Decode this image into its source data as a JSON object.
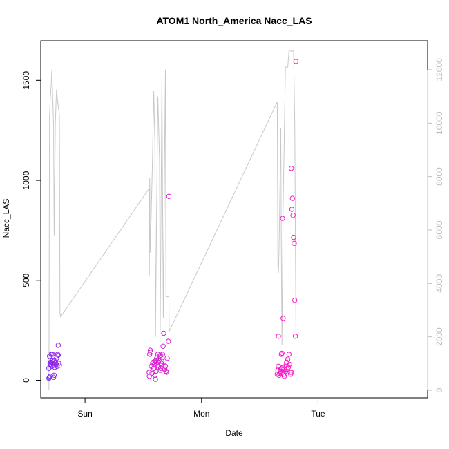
{
  "chart_data": {
    "type": "scatter",
    "title": "ATOM1 North_America Nacc_LAS",
    "xlabel": "Date",
    "ylabel": "Nacc_LAS",
    "x_ticks": [
      "Sun",
      "Mon",
      "Tue"
    ],
    "y_left": {
      "ylim": [
        -50,
        1660
      ],
      "ticks": [
        0,
        500,
        1000,
        1500
      ]
    },
    "y_right": {
      "ylim": [
        0,
        12800
      ],
      "ticks": [
        0,
        2000,
        4000,
        6000,
        8000,
        10000,
        12000
      ],
      "color": "#bebebe"
    },
    "x_range_days": [
      -0.38,
      2.94
    ],
    "colors": {
      "line": "#c8c8c8",
      "points_start": "#6a2cf5",
      "points_end": "#ff16c8"
    },
    "line_series": [
      [
        -0.31,
        0
      ],
      [
        -0.305,
        10300
      ],
      [
        -0.3,
        10800
      ],
      [
        -0.29,
        11450
      ],
      [
        -0.285,
        12000
      ],
      [
        -0.27,
        9900
      ],
      [
        -0.265,
        5800
      ],
      [
        -0.255,
        10000
      ],
      [
        -0.245,
        11250
      ],
      [
        -0.235,
        10800
      ],
      [
        -0.225,
        10500
      ],
      [
        -0.22,
        10300
      ],
      [
        -0.215,
        2900
      ],
      [
        -0.21,
        2750
      ],
      [
        0.55,
        7550
      ],
      [
        0.552,
        4300
      ],
      [
        0.555,
        7950
      ],
      [
        0.56,
        5150
      ],
      [
        0.58,
        8800
      ],
      [
        0.59,
        11200
      ],
      [
        0.6,
        9200
      ],
      [
        0.605,
        2000
      ],
      [
        0.615,
        6800
      ],
      [
        0.625,
        11000
      ],
      [
        0.64,
        8600
      ],
      [
        0.645,
        2200
      ],
      [
        0.66,
        11650
      ],
      [
        0.672,
        2700
      ],
      [
        0.685,
        9700
      ],
      [
        0.69,
        12000
      ],
      [
        0.695,
        3500
      ],
      [
        0.7,
        3500
      ],
      [
        0.72,
        3500
      ],
      [
        0.722,
        2200
      ],
      [
        1.65,
        10800
      ],
      [
        1.655,
        4600
      ],
      [
        1.66,
        4400
      ],
      [
        1.665,
        5200
      ],
      [
        1.68,
        9800
      ],
      [
        1.685,
        5100
      ],
      [
        1.69,
        1700
      ],
      [
        1.7,
        6800
      ],
      [
        1.72,
        12100
      ],
      [
        1.74,
        12100
      ],
      [
        1.75,
        12700
      ],
      [
        1.79,
        12700
      ],
      [
        1.8,
        10000
      ],
      [
        1.81,
        2200
      ]
    ],
    "points": [
      [
        -0.31,
        10
      ],
      [
        -0.305,
        15
      ],
      [
        -0.3,
        20
      ],
      [
        -0.31,
        60
      ],
      [
        -0.3,
        80
      ],
      [
        -0.295,
        90
      ],
      [
        -0.305,
        120
      ],
      [
        -0.29,
        130
      ],
      [
        -0.285,
        70
      ],
      [
        -0.28,
        100
      ],
      [
        -0.275,
        85
      ],
      [
        -0.27,
        75
      ],
      [
        -0.265,
        95
      ],
      [
        -0.26,
        65
      ],
      [
        -0.255,
        90
      ],
      [
        -0.25,
        80
      ],
      [
        -0.245,
        110
      ],
      [
        -0.24,
        75
      ],
      [
        -0.235,
        130
      ],
      [
        -0.23,
        125
      ],
      [
        -0.225,
        85
      ],
      [
        -0.22,
        75
      ],
      [
        -0.23,
        175
      ],
      [
        -0.27,
        15
      ],
      [
        -0.265,
        25
      ],
      [
        -0.28,
        130
      ],
      [
        -0.26,
        100
      ],
      [
        -0.24,
        70
      ],
      [
        -0.29,
        90
      ],
      [
        -0.295,
        75
      ],
      [
        0.55,
        40
      ],
      [
        0.552,
        20
      ],
      [
        0.555,
        130
      ],
      [
        0.56,
        150
      ],
      [
        0.565,
        140
      ],
      [
        0.57,
        70
      ],
      [
        0.575,
        35
      ],
      [
        0.58,
        85
      ],
      [
        0.585,
        90
      ],
      [
        0.59,
        60
      ],
      [
        0.595,
        80
      ],
      [
        0.6,
        25
      ],
      [
        0.605,
        5
      ],
      [
        0.61,
        100
      ],
      [
        0.615,
        110
      ],
      [
        0.62,
        75
      ],
      [
        0.625,
        130
      ],
      [
        0.63,
        90
      ],
      [
        0.635,
        100
      ],
      [
        0.64,
        120
      ],
      [
        0.645,
        50
      ],
      [
        0.65,
        60
      ],
      [
        0.655,
        85
      ],
      [
        0.66,
        95
      ],
      [
        0.665,
        130
      ],
      [
        0.67,
        170
      ],
      [
        0.675,
        235
      ],
      [
        0.68,
        75
      ],
      [
        0.685,
        55
      ],
      [
        0.69,
        70
      ],
      [
        0.695,
        45
      ],
      [
        0.7,
        40
      ],
      [
        0.705,
        110
      ],
      [
        0.72,
        920
      ],
      [
        0.715,
        195
      ],
      [
        0.6,
        95
      ],
      [
        0.61,
        45
      ],
      [
        0.63,
        65
      ],
      [
        0.65,
        125
      ],
      [
        1.65,
        30
      ],
      [
        1.655,
        50
      ],
      [
        1.66,
        70
      ],
      [
        1.665,
        25
      ],
      [
        1.67,
        35
      ],
      [
        1.675,
        45
      ],
      [
        1.68,
        55
      ],
      [
        1.685,
        130
      ],
      [
        1.69,
        60
      ],
      [
        1.695,
        40
      ],
      [
        1.7,
        65
      ],
      [
        1.705,
        30
      ],
      [
        1.71,
        20
      ],
      [
        1.715,
        55
      ],
      [
        1.72,
        45
      ],
      [
        1.725,
        75
      ],
      [
        1.73,
        90
      ],
      [
        1.735,
        55
      ],
      [
        1.74,
        105
      ],
      [
        1.745,
        65
      ],
      [
        1.75,
        130
      ],
      [
        1.755,
        80
      ],
      [
        1.76,
        40
      ],
      [
        1.765,
        30
      ],
      [
        1.77,
        40
      ],
      [
        1.66,
        220
      ],
      [
        1.7,
        310
      ],
      [
        1.695,
        810
      ],
      [
        1.69,
        135
      ],
      [
        1.77,
        1060
      ],
      [
        1.78,
        910
      ],
      [
        1.775,
        855
      ],
      [
        1.785,
        825
      ],
      [
        1.79,
        715
      ],
      [
        1.795,
        685
      ],
      [
        1.8,
        400
      ],
      [
        1.805,
        220
      ],
      [
        1.81,
        1595
      ]
    ]
  }
}
